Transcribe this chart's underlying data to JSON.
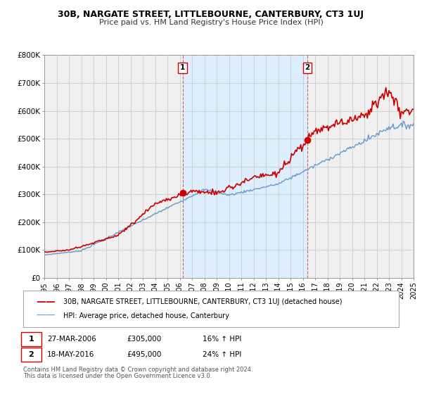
{
  "title": "30B, NARGATE STREET, LITTLEBOURNE, CANTERBURY, CT3 1UJ",
  "subtitle": "Price paid vs. HM Land Registry's House Price Index (HPI)",
  "ylim": [
    0,
    800000
  ],
  "xlim": [
    1995,
    2025
  ],
  "yticks": [
    0,
    100000,
    200000,
    300000,
    400000,
    500000,
    600000,
    700000,
    800000
  ],
  "ytick_labels": [
    "£0",
    "£100K",
    "£200K",
    "£300K",
    "£400K",
    "£500K",
    "£600K",
    "£700K",
    "£800K"
  ],
  "sale1_x": 2006.23,
  "sale1_y": 305000,
  "sale1_label": "1",
  "sale1_date": "27-MAR-2006",
  "sale1_price": "£305,000",
  "sale1_hpi": "16% ↑ HPI",
  "sale2_x": 2016.38,
  "sale2_y": 495000,
  "sale2_label": "2",
  "sale2_date": "18-MAY-2016",
  "sale2_price": "£495,000",
  "sale2_hpi": "24% ↑ HPI",
  "shaded_region_start": 2006.23,
  "shaded_region_end": 2016.38,
  "house_line_color": "#cc0000",
  "hpi_line_color": "#6699cc",
  "shaded_color": "#ddeeff",
  "grid_color": "#cccccc",
  "background_color": "#f0f0f0",
  "legend_house": "30B, NARGATE STREET, LITTLEBOURNE, CANTERBURY, CT3 1UJ (detached house)",
  "legend_hpi": "HPI: Average price, detached house, Canterbury",
  "footnote1": "Contains HM Land Registry data © Crown copyright and database right 2024.",
  "footnote2": "This data is licensed under the Open Government Licence v3.0."
}
